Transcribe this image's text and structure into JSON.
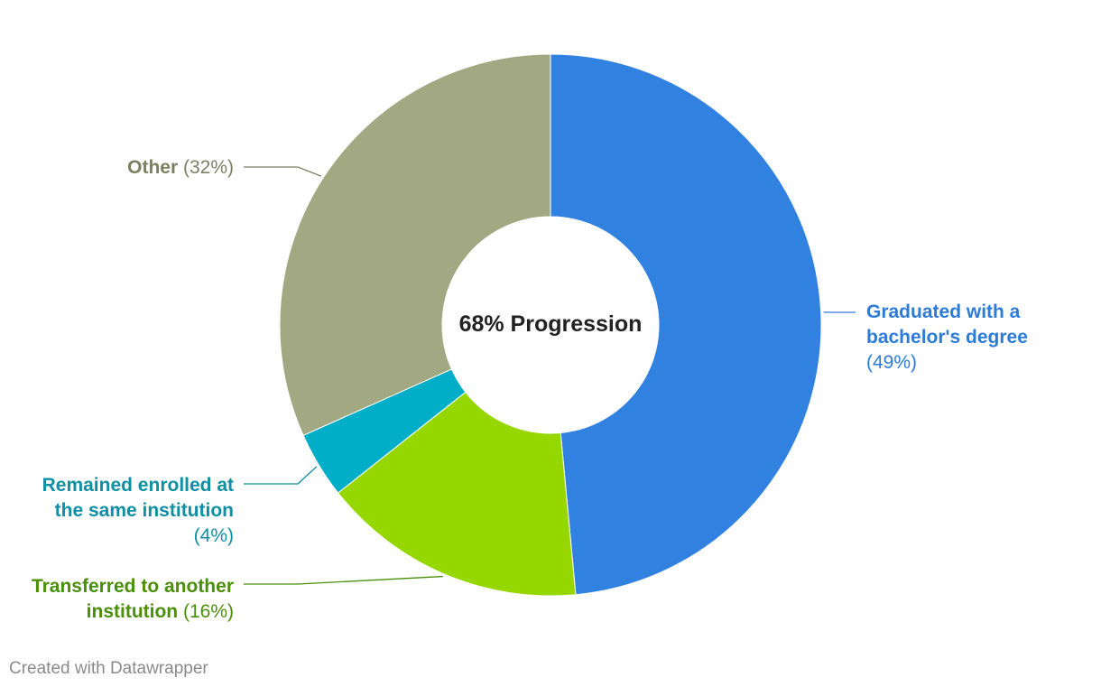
{
  "chart_data": {
    "type": "pie",
    "variant": "donut",
    "center_label": "68% Progression",
    "slices": [
      {
        "label_lines": [
          "Graduated with a",
          "bachelor's degree"
        ],
        "value_text": "(49%)",
        "value": 49,
        "color": "#3182e0",
        "label_color": "#2c7bd8"
      },
      {
        "label_lines": [
          "Transferred to another",
          "institution"
        ],
        "value_text": "(16%)",
        "value": 16,
        "color": "#97d700",
        "label_color": "#4a8f0a"
      },
      {
        "label_lines": [
          "Remained enrolled at",
          "the same institution"
        ],
        "value_text": "(4%)",
        "value": 4,
        "color": "#00aec7",
        "label_color": "#0e8fa3"
      },
      {
        "label_lines": [
          "Other"
        ],
        "value_text": "(32%)",
        "value": 32,
        "color": "#a2a882",
        "label_color": "#7b8063"
      }
    ]
  },
  "footer": {
    "credit": "Created with Datawrapper"
  }
}
